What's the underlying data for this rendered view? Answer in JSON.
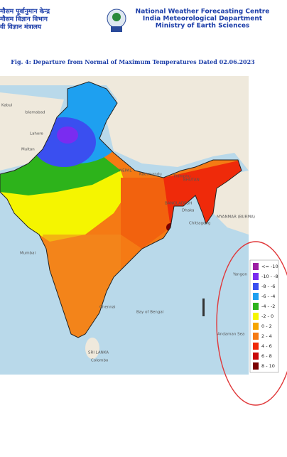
{
  "header": {
    "hindi_lines": [
      "मौसम पूर्वानुमान केन्द्र",
      "मौसम विज्ञान विभाग",
      "वी विज्ञान मंत्रालय"
    ],
    "english_lines": [
      "National Weather Forecasting Centre",
      "India Meteorological Department",
      "Ministry of Earth Sciences"
    ]
  },
  "caption": "Fig. 4: Departure from Normal of Maximum Temperatures Dated 02.06.2023",
  "map_labels": [
    "Kabul",
    "Islamabad",
    "Lahore",
    "Multan",
    "NEPAL",
    "Kathmandu",
    "Thimphu",
    "BHUTAN",
    "BANGLADESH",
    "Dhaka",
    "Chittagong",
    "MYANMAR (BURMA)",
    "Mumbai",
    "Chennai",
    "Bay of Bengal",
    "SRI LANKA",
    "Colombo",
    "Andaman Sea",
    "Yangon"
  ],
  "legend": [
    {
      "label": "<= -10",
      "color": "#9c1fa3"
    },
    {
      "label": "-10 - -8",
      "color": "#7a2cf0"
    },
    {
      "label": "-8 - -6",
      "color": "#3a4ff0"
    },
    {
      "label": "-6 - -4",
      "color": "#1ea0f0"
    },
    {
      "label": "-4 - -2",
      "color": "#2db31b"
    },
    {
      "label": "-2 - 0",
      "color": "#f5f500"
    },
    {
      "label": "0 - 2",
      "color": "#f5a500"
    },
    {
      "label": "2 - 4",
      "color": "#f57a14"
    },
    {
      "label": "4 - 6",
      "color": "#ef2a0a"
    },
    {
      "label": "6 - 8",
      "color": "#c80a0a"
    },
    {
      "label": "8 - 10",
      "color": "#7a0000"
    }
  ]
}
